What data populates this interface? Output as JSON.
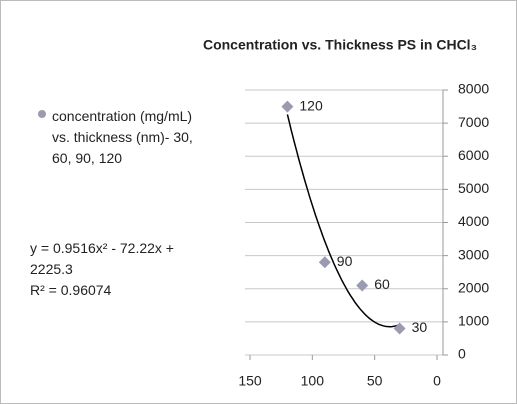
{
  "chart_data": {
    "type": "scatter",
    "title": "Concentration vs. Thickness PS in CHCl₃",
    "legend": "concentration (mg/mL) vs. thickness (nm)- 30, 60, 90, 120",
    "series": [
      {
        "name": "concentration (mg/mL) vs. thickness (nm)- 30, 60, 90, 120",
        "color": "#9a9ab0",
        "x": [
          120,
          90,
          60,
          30
        ],
        "values": [
          7500,
          2800,
          2100,
          800
        ]
      }
    ],
    "trendline": {
      "equation": "y = 0.9516x² - 72.22x + 2225.3",
      "r_squared": "R² = 0.96074",
      "coefficients": [
        0.9516,
        -72.22,
        2225.3
      ],
      "color": "#000000"
    },
    "xlim": [
      150,
      0
    ],
    "xticks": [
      150,
      100,
      50,
      0
    ],
    "ylim": [
      0,
      8000
    ],
    "yticks": [
      0,
      1000,
      2000,
      3000,
      4000,
      5000,
      6000,
      7000,
      8000
    ],
    "grid": true
  }
}
